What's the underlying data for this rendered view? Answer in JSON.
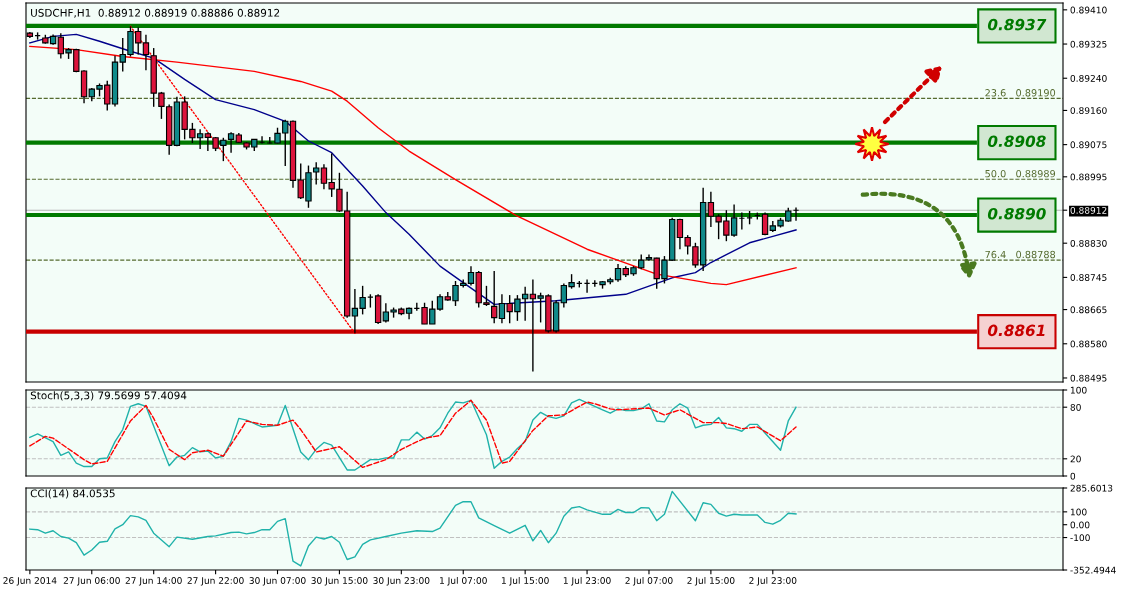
{
  "chart_data": [
    {
      "type": "candlestick",
      "title": "USDCHF,H1  0.88912 0.88919 0.88886 0.88912",
      "categories": [
        null,
        null,
        null,
        null,
        null,
        null,
        null,
        null,
        null,
        null,
        null,
        null,
        null,
        null,
        null,
        null,
        null,
        null,
        null,
        null,
        null,
        null,
        null,
        null,
        null,
        null,
        null,
        null,
        null,
        null,
        null,
        null,
        null,
        null,
        null,
        null,
        null,
        null,
        null,
        null,
        null,
        null,
        null,
        null,
        null,
        null,
        null,
        null,
        null,
        null,
        null,
        null,
        null,
        null,
        null,
        null,
        null,
        null,
        null,
        null,
        null,
        null,
        null,
        null,
        null,
        null,
        null,
        null,
        null,
        null,
        null,
        null,
        null,
        null,
        null,
        null,
        null,
        null,
        null,
        null,
        null,
        null,
        null,
        null,
        null,
        null,
        null,
        null,
        null,
        null,
        null,
        null,
        null,
        null,
        null,
        null,
        null,
        null,
        null,
        null,
        null,
        null,
        null,
        null,
        null,
        null,
        null,
        null,
        null,
        null,
        null,
        null,
        null,
        null,
        null,
        null,
        null,
        null,
        null,
        null,
        null,
        null,
        null,
        null,
        null,
        null,
        null,
        null,
        null,
        null,
        null,
        null,
        null,
        null
      ],
      "ohlc": [
        [
          0.89352,
          0.89355,
          0.8934,
          0.89344
        ],
        [
          0.89346,
          0.89354,
          0.89336,
          0.89346
        ],
        [
          0.8934,
          0.89348,
          0.89326,
          0.89328
        ],
        [
          0.89326,
          0.89349,
          0.89323,
          0.89344
        ],
        [
          0.89342,
          0.89352,
          0.89289,
          0.89301
        ],
        [
          0.89303,
          0.89315,
          0.89288,
          0.89311
        ],
        [
          0.89311,
          0.89313,
          0.89255,
          0.89257
        ],
        [
          0.89258,
          0.8926,
          0.89178,
          0.89194
        ],
        [
          0.89194,
          0.89216,
          0.89183,
          0.89213
        ],
        [
          0.89213,
          0.89227,
          0.89195,
          0.89222
        ],
        [
          0.89223,
          0.89234,
          0.8916,
          0.89176
        ],
        [
          0.89176,
          0.89296,
          0.8917,
          0.8928
        ],
        [
          0.8928,
          0.8934,
          0.89257,
          0.89299
        ],
        [
          0.89299,
          0.89369,
          0.89294,
          0.89356
        ],
        [
          0.89356,
          0.89366,
          0.89299,
          0.89328
        ],
        [
          0.89328,
          0.89348,
          0.8926,
          0.89299
        ],
        [
          0.89296,
          0.89315,
          0.89169,
          0.89203
        ],
        [
          0.89203,
          0.89206,
          0.89139,
          0.8917
        ],
        [
          0.89169,
          0.89175,
          0.8905,
          0.89073
        ],
        [
          0.89073,
          0.89194,
          0.89071,
          0.89181
        ],
        [
          0.89181,
          0.89195,
          0.89088,
          0.89113
        ],
        [
          0.89113,
          0.89129,
          0.89079,
          0.89092
        ],
        [
          0.89092,
          0.89113,
          0.89064,
          0.89102
        ],
        [
          0.89102,
          0.89106,
          0.89059,
          0.89093
        ],
        [
          0.89092,
          0.89094,
          0.89059,
          0.89066
        ],
        [
          0.89073,
          0.89092,
          0.89034,
          0.89086
        ],
        [
          0.89088,
          0.89106,
          0.89055,
          0.89102
        ],
        [
          0.89099,
          0.89104,
          0.89079,
          0.89081
        ],
        [
          0.89079,
          0.89081,
          0.89063,
          0.89069
        ],
        [
          0.89069,
          0.89089,
          0.89059,
          0.89088
        ],
        [
          0.89081,
          0.89096,
          0.89078,
          0.89081
        ],
        [
          0.89079,
          0.89094,
          0.89078,
          0.89079
        ],
        [
          0.89079,
          0.89117,
          0.89078,
          0.89103
        ],
        [
          0.89104,
          0.89137,
          0.89022,
          0.89133
        ],
        [
          0.89133,
          0.89135,
          0.88968,
          0.88986
        ],
        [
          0.88987,
          0.89028,
          0.8894,
          0.88943
        ],
        [
          0.88935,
          0.89023,
          0.88918,
          0.89005
        ],
        [
          0.89007,
          0.89031,
          0.88976,
          0.89017
        ],
        [
          0.89017,
          0.89026,
          0.88964,
          0.88979
        ],
        [
          0.88981,
          0.89053,
          0.88945,
          0.88965
        ],
        [
          0.88964,
          0.89005,
          0.88908,
          0.8891
        ],
        [
          0.8891,
          0.88958,
          0.88645,
          0.88649
        ],
        [
          0.88649,
          0.88716,
          0.88606,
          0.88668
        ],
        [
          0.88668,
          0.88724,
          0.88653,
          0.88695
        ],
        [
          0.88696,
          0.88703,
          0.8867,
          0.88696
        ],
        [
          0.88699,
          0.88703,
          0.88629,
          0.88633
        ],
        [
          0.88637,
          0.88681,
          0.88633,
          0.88659
        ],
        [
          0.88659,
          0.8867,
          0.88645,
          0.88664
        ],
        [
          0.88666,
          0.8867,
          0.88651,
          0.88655
        ],
        [
          0.88656,
          0.8867,
          0.88641,
          0.88668
        ],
        [
          0.88668,
          0.88682,
          0.88662,
          0.88668
        ],
        [
          0.8867,
          0.88682,
          0.88629,
          0.88629
        ],
        [
          0.88629,
          0.88687,
          0.88629,
          0.88666
        ],
        [
          0.88666,
          0.88703,
          0.88662,
          0.88697
        ],
        [
          0.88697,
          0.88709,
          0.88687,
          0.88689
        ],
        [
          0.88687,
          0.88736,
          0.88674,
          0.88725
        ],
        [
          0.88725,
          0.8874,
          0.8872,
          0.8873
        ],
        [
          0.8873,
          0.88773,
          0.88725,
          0.88757
        ],
        [
          0.88757,
          0.88761,
          0.8867,
          0.88682
        ],
        [
          0.88682,
          0.88724,
          0.88674,
          0.88678
        ],
        [
          0.88673,
          0.88761,
          0.88631,
          0.88645
        ],
        [
          0.88643,
          0.88703,
          0.88631,
          0.8868
        ],
        [
          0.8868,
          0.88701,
          0.88631,
          0.8866
        ],
        [
          0.8866,
          0.88701,
          0.88637,
          0.88691
        ],
        [
          0.88692,
          0.88722,
          0.88637,
          0.88703
        ],
        [
          0.88703,
          0.8874,
          0.88511,
          0.88692
        ],
        [
          0.88693,
          0.88707,
          0.88633,
          0.88699
        ],
        [
          0.88699,
          0.88703,
          0.88608,
          0.88612
        ],
        [
          0.88612,
          0.88688,
          0.88608,
          0.88682
        ],
        [
          0.88682,
          0.8873,
          0.8867,
          0.88725
        ],
        [
          0.88722,
          0.88753,
          0.88717,
          0.88732
        ],
        [
          0.8873,
          0.88736,
          0.8872,
          0.8873
        ],
        [
          0.8873,
          0.8874,
          0.88707,
          0.8873
        ],
        [
          0.8873,
          0.88738,
          0.88722,
          0.8873
        ],
        [
          0.88727,
          0.88736,
          0.88717,
          0.88734
        ],
        [
          0.88734,
          0.88744,
          0.88728,
          0.88739
        ],
        [
          0.88739,
          0.88778,
          0.88734,
          0.88767
        ],
        [
          0.88767,
          0.88773,
          0.88746,
          0.88752
        ],
        [
          0.88754,
          0.88773,
          0.88749,
          0.88769
        ],
        [
          0.88769,
          0.88802,
          0.88765,
          0.88788
        ],
        [
          0.8879,
          0.88802,
          0.88786,
          0.88794
        ],
        [
          0.88793,
          0.88794,
          0.88717,
          0.88742
        ],
        [
          0.88742,
          0.88798,
          0.8873,
          0.88788
        ],
        [
          0.88788,
          0.88893,
          0.88786,
          0.88889
        ],
        [
          0.88889,
          0.88891,
          0.88815,
          0.88844
        ],
        [
          0.88844,
          0.8885,
          0.88802,
          0.88823
        ],
        [
          0.88821,
          0.88831,
          0.88769,
          0.88776
        ],
        [
          0.88776,
          0.88968,
          0.88761,
          0.88931
        ],
        [
          0.88931,
          0.88958,
          0.8887,
          0.88897
        ],
        [
          0.88897,
          0.88902,
          0.8884,
          0.88883
        ],
        [
          0.88885,
          0.88912,
          0.88835,
          0.8885
        ],
        [
          0.8885,
          0.88926,
          0.88846,
          0.88893
        ],
        [
          0.88892,
          0.88906,
          0.88864,
          0.88892
        ],
        [
          0.88893,
          0.8891,
          0.88877,
          0.88893
        ],
        [
          0.88899,
          0.88906,
          0.88889,
          0.88899
        ],
        [
          0.88902,
          0.88906,
          0.8885,
          0.88852
        ],
        [
          0.88862,
          0.88885,
          0.88858,
          0.88873
        ],
        [
          0.88873,
          0.88893,
          0.88869,
          0.88887
        ],
        [
          0.88885,
          0.88918,
          0.88883,
          0.8891
        ],
        [
          0.88912,
          0.88919,
          0.88886,
          0.88912
        ],
        null,
        null,
        null,
        null,
        null,
        null,
        null,
        null,
        null,
        null,
        null,
        null,
        null,
        null,
        null,
        null,
        null,
        null,
        null,
        null,
        null,
        null,
        null,
        null,
        null,
        null,
        null,
        null,
        null,
        null,
        null,
        null,
        null,
        null
      ],
      "colors": [
        "#dc143c",
        "#000000",
        "#dc143c",
        "#108a8a",
        "#dc143c",
        "#108a8a",
        "#dc143c",
        "#dc143c",
        "#108a8a",
        "#108a8a",
        "#dc143c",
        "#108a8a",
        "#108a8a",
        "#108a8a",
        "#dc143c",
        "#dc143c",
        "#dc143c",
        "#dc143c",
        "#dc143c",
        "#108a8a",
        "#dc143c",
        "#dc143c",
        "#108a8a",
        "#dc143c",
        "#dc143c",
        "#108a8a",
        "#108a8a",
        "#dc143c",
        "#dc143c",
        "#108a8a",
        "#000000",
        "#000000",
        "#108a8a",
        "#108a8a",
        "#dc143c",
        "#dc143c",
        "#108a8a",
        "#108a8a",
        "#dc143c",
        "#dc143c",
        "#dc143c",
        "#dc143c",
        "#108a8a",
        "#108a8a",
        "#000000",
        "#dc143c",
        "#108a8a",
        "#108a8a",
        "#dc143c",
        "#108a8a",
        "#000000",
        "#dc143c",
        "#108a8a",
        "#108a8a",
        "#dc143c",
        "#108a8a",
        "#108a8a",
        "#108a8a",
        "#dc143c",
        "#dc143c",
        "#dc143c",
        "#108a8a",
        "#dc143c",
        "#108a8a",
        "#108a8a",
        "#dc143c",
        "#108a8a",
        "#dc143c",
        "#108a8a",
        "#108a8a",
        "#108a8a",
        "#000000",
        "#000000",
        "#000000",
        "#108a8a",
        "#108a8a",
        "#108a8a",
        "#dc143c",
        "#108a8a",
        "#108a8a",
        "#108a8a",
        "#dc143c",
        "#108a8a",
        "#108a8a",
        "#dc143c",
        "#dc143c",
        "#dc143c",
        "#108a8a",
        "#dc143c",
        "#dc143c",
        "#dc143c",
        "#108a8a",
        "#000000",
        "#000000",
        "#000000",
        "#dc143c",
        "#108a8a",
        "#108a8a",
        "#108a8a",
        "#000000",
        null,
        null,
        null,
        null,
        null,
        null,
        null,
        null,
        null,
        null,
        null,
        null,
        null,
        null,
        null,
        null,
        null,
        null,
        null,
        null,
        null,
        null,
        null,
        null,
        null,
        null,
        null,
        null,
        null,
        null,
        null,
        null,
        null,
        null
      ],
      "series": [
        {
          "type": "line",
          "color": "#00008b",
          "values": [
            0.89328,
            null,
            null,
            0.89344,
            null,
            null,
            0.89349,
            null,
            null,
            0.89332,
            null,
            null,
            null,
            0.89307,
            null,
            null,
            0.8929,
            null,
            null,
            null,
            0.89237,
            null,
            null,
            null,
            0.89187,
            null,
            null,
            null,
            null,
            0.89162,
            null,
            null,
            null,
            0.89133,
            null,
            null,
            0.89084,
            null,
            null,
            0.89055,
            null,
            null,
            null,
            0.88972,
            null,
            null,
            0.88906,
            null,
            null,
            0.88852,
            null,
            null,
            null,
            0.88773,
            null,
            null,
            0.88732,
            null,
            null,
            null,
            0.88678,
            null,
            null,
            null,
            null,
            null,
            null,
            null,
            0.88687,
            null,
            null,
            null,
            null,
            null,
            null,
            null,
            null,
            0.88703,
            null,
            null,
            null,
            null,
            null,
            0.88744,
            null,
            null,
            0.88757,
            null,
            0.88782,
            null,
            null,
            null,
            null,
            0.88831,
            null,
            null,
            null,
            null,
            null,
            0.88863,
            null,
            null,
            null,
            null,
            null,
            null,
            null,
            null,
            null,
            null,
            null,
            null,
            null,
            null,
            null,
            null,
            null,
            null,
            null,
            null,
            null,
            null,
            null,
            null,
            null,
            null,
            null,
            null,
            null,
            null,
            null,
            null,
            null,
            null
          ]
        },
        {
          "type": "line",
          "color": "#ff0000",
          "values": [
            0.89319,
            null,
            null,
            null,
            null,
            null,
            0.89311,
            null,
            null,
            null,
            null,
            null,
            0.89294,
            null,
            null,
            null,
            null,
            null,
            null,
            0.8928,
            null,
            null,
            null,
            null,
            null,
            null,
            null,
            null,
            null,
            0.89257,
            null,
            null,
            null,
            null,
            null,
            0.89232,
            null,
            null,
            null,
            0.89208,
            null,
            0.89183,
            null,
            null,
            null,
            0.89117,
            null,
            null,
            null,
            0.89059,
            null,
            null,
            null,
            null,
            null,
            0.88988,
            null,
            null,
            null,
            null,
            null,
            null,
            null,
            0.88897,
            null,
            null,
            null,
            null,
            null,
            null,
            null,
            null,
            0.88815,
            null,
            null,
            null,
            null,
            null,
            null,
            null,
            null,
            0.88753,
            null,
            null,
            null,
            null,
            null,
            null,
            0.8873,
            null,
            0.88727,
            null,
            null,
            null,
            null,
            null,
            null,
            null,
            null,
            0.88769,
            null,
            null,
            null,
            null,
            null,
            null,
            null,
            null,
            null,
            null,
            null,
            null,
            null,
            null,
            null,
            null,
            null,
            null,
            null,
            null,
            null,
            null,
            null,
            null,
            null,
            null,
            null,
            null,
            null,
            null,
            null,
            null,
            null,
            null
          ]
        },
        {
          "type": "line",
          "color": "#ff0000",
          "line_style": "dotted",
          "values": [
            null,
            null,
            null,
            null,
            null,
            null,
            null,
            null,
            null,
            null,
            null,
            null,
            null,
            0.89369,
            null,
            null,
            null,
            null,
            null,
            null,
            null,
            null,
            null,
            null,
            null,
            null,
            null,
            null,
            null,
            null,
            null,
            null,
            null,
            null,
            null,
            null,
            null,
            null,
            null,
            null,
            null,
            null,
            0.88606,
            null,
            null,
            null,
            null,
            null,
            null,
            null,
            null,
            null,
            null,
            null,
            null,
            null,
            null,
            null,
            null,
            null,
            null,
            null,
            null,
            null,
            null,
            null,
            null,
            null,
            null,
            null,
            null,
            null,
            null,
            null,
            null,
            null,
            null,
            null,
            null,
            null,
            null,
            null,
            null,
            null,
            null,
            null,
            null,
            null,
            null,
            null,
            null,
            null,
            null,
            null,
            null,
            null,
            null,
            null,
            null,
            null,
            null,
            null,
            null,
            null,
            null,
            null,
            null,
            null,
            null,
            null,
            null,
            null,
            null,
            null,
            null,
            null,
            null,
            null,
            null,
            null,
            null,
            null,
            null,
            null,
            null,
            null,
            null,
            null,
            null,
            null,
            null,
            null,
            null,
            null
          ]
        }
      ],
      "ylim": [
        0.88485,
        0.89427
      ],
      "yticks": [
        {
          "value": 0.8941,
          "label": "0.89410"
        },
        {
          "value": 0.89325,
          "label": "0.89325"
        },
        {
          "value": 0.8924,
          "label": "0.89240"
        },
        {
          "value": 0.8916,
          "label": "0.89160"
        },
        {
          "value": 0.89075,
          "label": "0.89075"
        },
        {
          "value": 0.88995,
          "label": "0.88995"
        },
        {
          "value": 0.88912,
          "label": "0.88912"
        },
        {
          "value": 0.8883,
          "label": "0.88830"
        },
        {
          "value": 0.88745,
          "label": "0.88745"
        },
        {
          "value": 0.88665,
          "label": "0.88665"
        },
        {
          "value": 0.8858,
          "label": "0.88580"
        },
        {
          "value": 0.88495,
          "label": "0.88495"
        }
      ],
      "ref_lines": [
        {
          "axis": "y",
          "value": 0.8937,
          "label": "0.8937",
          "color": "#007a00",
          "line_style": "solid"
        },
        {
          "axis": "y",
          "value": 0.8908,
          "label": "0.8908",
          "color": "#007a00",
          "line_style": "solid"
        },
        {
          "axis": "y",
          "value": 0.889,
          "label": "0.8890",
          "color": "#007a00",
          "line_style": "solid"
        },
        {
          "axis": "y",
          "value": 0.8861,
          "label": "0.8861",
          "color": "#c80000",
          "line_style": "solid"
        },
        {
          "axis": "y",
          "value": 0.8919,
          "label": "23.6   0.89190",
          "color": "#556b2f",
          "line_style": "dashed"
        },
        {
          "axis": "y",
          "value": 0.88989,
          "label": "50.0   0.88989",
          "color": "#556b2f",
          "line_style": "dashed"
        },
        {
          "axis": "y",
          "value": 0.88788,
          "label": "76.4   0.88788",
          "color": "#556b2f",
          "line_style": "dashed"
        },
        {
          "axis": "y",
          "value": 0.88912,
          "color": "#b4b4b4",
          "line_style": "solid"
        }
      ]
    },
    {
      "type": "line",
      "title": "Stoch(5,3,3) 79.5699 57.4094",
      "categories": [
        null,
        null,
        null,
        null,
        null,
        null,
        null,
        null,
        null,
        null,
        null,
        null,
        null,
        null,
        null,
        null,
        null,
        null,
        null,
        null,
        null,
        null,
        null,
        null,
        null,
        null,
        null,
        null,
        null,
        null,
        null,
        null,
        null,
        null,
        null,
        null,
        null,
        null,
        null,
        null,
        null,
        null,
        null,
        null,
        null,
        null,
        null,
        null,
        null,
        null,
        null,
        null,
        null,
        null,
        null,
        null,
        null,
        null,
        null,
        null,
        null,
        null,
        null,
        null,
        null,
        null,
        null,
        null,
        null,
        null,
        null,
        null,
        null,
        null,
        null,
        null,
        null,
        null,
        null,
        null,
        null,
        null,
        null,
        null,
        null,
        null,
        null,
        null,
        null,
        null,
        null,
        null,
        null,
        null,
        null,
        null,
        null,
        null,
        null,
        null,
        null,
        null,
        null,
        null,
        null,
        null,
        null,
        null,
        null,
        null,
        null,
        null,
        null,
        null,
        null,
        null,
        null,
        null,
        null,
        null,
        null,
        null,
        null,
        null,
        null,
        null,
        null,
        null,
        null,
        null,
        null,
        null,
        null,
        null
      ],
      "series": [
        {
          "color": "#20b2aa",
          "values": [
            45,
            49,
            null,
            40,
            24,
            28,
            15,
            11,
            11,
            20,
            21,
            40,
            54,
            81,
            84,
            81,
            null,
            null,
            12,
            22,
            24,
            33,
            28,
            29,
            21,
            23,
            40,
            67,
            65,
            null,
            57,
            null,
            59,
            82,
            null,
            28,
            19,
            31,
            39,
            36,
            null,
            7,
            7,
            null,
            19,
            19,
            21,
            21,
            42,
            42,
            51,
            43,
            47,
            56,
            73,
            86,
            85,
            88,
            null,
            48,
            9,
            17,
            22,
            32,
            40,
            65,
            74,
            69,
            67,
            70,
            85,
            89,
            85,
            null,
            77,
            73,
            78,
            76,
            76,
            78,
            84,
            64,
            63,
            77,
            84,
            79,
            56,
            59,
            60,
            68,
            56,
            55,
            52,
            60,
            60,
            null,
            null,
            30,
            64,
            80,
            null,
            null,
            null,
            null,
            null,
            null,
            null,
            null,
            null,
            null,
            null,
            null,
            null,
            null,
            null,
            null,
            null,
            null,
            null,
            null,
            null,
            null,
            null,
            null,
            null,
            null,
            null,
            null,
            null,
            null,
            null,
            null,
            null,
            null
          ]
        },
        {
          "color": "#ff0000",
          "line_style": "dashed",
          "values": [
            35,
            null,
            46,
            44,
            null,
            null,
            null,
            19,
            14,
            null,
            17,
            null,
            null,
            64,
            null,
            82,
            67,
            null,
            31,
            null,
            19,
            27,
            null,
            30,
            null,
            23,
            null,
            null,
            64,
            null,
            60,
            null,
            59,
            null,
            65,
            54,
            null,
            28,
            null,
            null,
            34,
            null,
            null,
            10,
            null,
            null,
            19,
            null,
            31,
            null,
            null,
            44,
            null,
            47,
            null,
            73,
            null,
            88,
            null,
            65,
            null,
            15,
            17,
            null,
            null,
            53,
            null,
            70,
            null,
            71,
            null,
            null,
            86,
            84,
            null,
            78,
            77,
            null,
            null,
            null,
            79,
            null,
            71,
            null,
            77,
            null,
            null,
            62,
            null,
            62,
            61,
            null,
            55,
            null,
            57,
            null,
            null,
            41,
            null,
            57,
            null,
            null,
            null,
            null,
            null,
            null,
            null,
            null,
            null,
            null,
            null,
            null,
            null,
            null,
            null,
            null,
            null,
            null,
            null,
            null,
            null,
            null,
            null,
            null,
            null,
            null,
            null,
            null,
            null,
            null,
            null,
            null,
            null,
            null
          ]
        }
      ],
      "ylim": [
        0,
        100
      ],
      "yticks": [
        100,
        80,
        20,
        0
      ],
      "ref_lines": [
        {
          "axis": "y",
          "value": 80,
          "color": "#c0c0c0",
          "line_style": "dashed"
        },
        {
          "axis": "y",
          "value": 20,
          "color": "#c0c0c0",
          "line_style": "dashed"
        }
      ]
    },
    {
      "type": "line",
      "title": "CCI(14) 84.0535",
      "categories": [
        "26 Jun 2014",
        null,
        null,
        null,
        null,
        null,
        null,
        null,
        "27 Jun 06:00",
        null,
        null,
        null,
        null,
        null,
        null,
        null,
        "27 Jun 14:00",
        null,
        null,
        null,
        null,
        null,
        null,
        null,
        "27 Jun 22:00",
        null,
        null,
        null,
        null,
        null,
        null,
        null,
        "30 Jun 07:00",
        null,
        null,
        null,
        null,
        null,
        null,
        null,
        "30 Jun 15:00",
        null,
        null,
        null,
        null,
        null,
        null,
        null,
        "30 Jun 23:00",
        null,
        null,
        null,
        null,
        null,
        null,
        null,
        "1 Jul 07:00",
        null,
        null,
        null,
        null,
        null,
        null,
        null,
        "1 Jul 15:00",
        null,
        null,
        null,
        null,
        null,
        null,
        null,
        "1 Jul 23:00",
        null,
        null,
        null,
        null,
        null,
        null,
        null,
        "2 Jul 07:00",
        null,
        null,
        null,
        null,
        null,
        null,
        null,
        "2 Jul 15:00",
        null,
        null,
        null,
        null,
        null,
        null,
        null,
        "2 Jul 23:00",
        null,
        null,
        null,
        null,
        null,
        null,
        null,
        null,
        null,
        null,
        null,
        null,
        null,
        null,
        null,
        null,
        null,
        null,
        null,
        null,
        null,
        null,
        null,
        null,
        null,
        null,
        null,
        null,
        null,
        null,
        null,
        null,
        null,
        null,
        null,
        null,
        null
      ],
      "series": [
        {
          "color": "#20b2aa",
          "values": [
            -34,
            -39,
            -66,
            -47,
            -92,
            -105,
            -140,
            -237,
            -197,
            -137,
            -129,
            -32,
            0,
            71,
            61,
            34,
            -66,
            null,
            -171,
            -97,
            null,
            -113,
            null,
            -92,
            -87,
            null,
            -61,
            -58,
            -71,
            -61,
            -39,
            -39,
            26,
            47,
            -284,
            -321,
            -166,
            -97,
            -111,
            -92,
            -137,
            -271,
            -250,
            -153,
            -118,
            null,
            -92,
            null,
            -66,
            null,
            -47,
            null,
            -53,
            -26,
            null,
            150,
            179,
            179,
            53,
            null,
            -8,
            null,
            -66,
            null,
            -5,
            -126,
            -45,
            -140,
            -66,
            66,
            130,
            141,
            116,
            null,
            81,
            81,
            119,
            95,
            95,
            133,
            130,
            31,
            81,
            259,
            null,
            null,
            31,
            171,
            158,
            89,
            67,
            81,
            75,
            null,
            75,
            18,
            4,
            34,
            89,
            84,
            null,
            null,
            null,
            null,
            null,
            null,
            null,
            null,
            null,
            null,
            null,
            null,
            null,
            null,
            null,
            null,
            null,
            null,
            null,
            null,
            null,
            null,
            null,
            null,
            null,
            null,
            null,
            null,
            null,
            null,
            null,
            null,
            null,
            null
          ]
        }
      ],
      "ylim": [
        -352.4944,
        285.6013
      ],
      "yticks": [
        {
          "value": 285.6013,
          "label": "285.6013"
        },
        {
          "value": 100,
          "label": "100"
        },
        {
          "value": 0,
          "label": "0.00"
        },
        {
          "value": -100,
          "label": "-100"
        },
        {
          "value": -352.4944,
          "label": "-352.4944"
        }
      ],
      "ref_lines": [
        {
          "axis": "y",
          "value": 100,
          "color": "#c0c0c0",
          "line_style": "dashed"
        },
        {
          "axis": "y",
          "value": -100,
          "color": "#c0c0c0",
          "line_style": "dashed"
        }
      ]
    }
  ]
}
